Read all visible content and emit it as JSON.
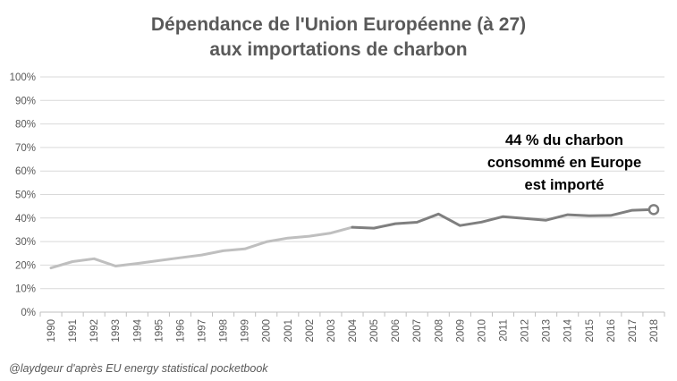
{
  "chart_data": {
    "type": "line",
    "title_lines": [
      "Dépendance de l'Union Européenne (à 27)",
      "aux importations de charbon"
    ],
    "x": [
      "1990",
      "1991",
      "1992",
      "1993",
      "1994",
      "1995",
      "1996",
      "1997",
      "1998",
      "1999",
      "2000",
      "2001",
      "2002",
      "2003",
      "2004",
      "2005",
      "2006",
      "2007",
      "2008",
      "2009",
      "2010",
      "2011",
      "2012",
      "2013",
      "2014",
      "2015",
      "2016",
      "2017",
      "2018"
    ],
    "series": [
      {
        "values": [
          18.8,
          21.5,
          22.7,
          19.6,
          20.7,
          21.9,
          23.1,
          24.3,
          26.1,
          26.9,
          29.9,
          31.5,
          32.3,
          33.6,
          36.1,
          35.7,
          37.6,
          38.2,
          41.7,
          36.8,
          38.3,
          40.6,
          39.8,
          39.1,
          41.4,
          41.0,
          41.1,
          43.3,
          43.6
        ],
        "color_early": "#bfbfbf",
        "color_late": "#7f7f7f",
        "split_year": "2004"
      }
    ],
    "yticks": [
      "0%",
      "10%",
      "20%",
      "30%",
      "40%",
      "50%",
      "60%",
      "70%",
      "80%",
      "90%",
      "100%"
    ],
    "ylim": [
      0,
      100
    ],
    "grid": true,
    "annotation_lines": [
      "44 % du charbon",
      "consommé  en Europe",
      "est importé"
    ],
    "credit": "@laydgeur d'après EU energy statistical pocketbook"
  }
}
